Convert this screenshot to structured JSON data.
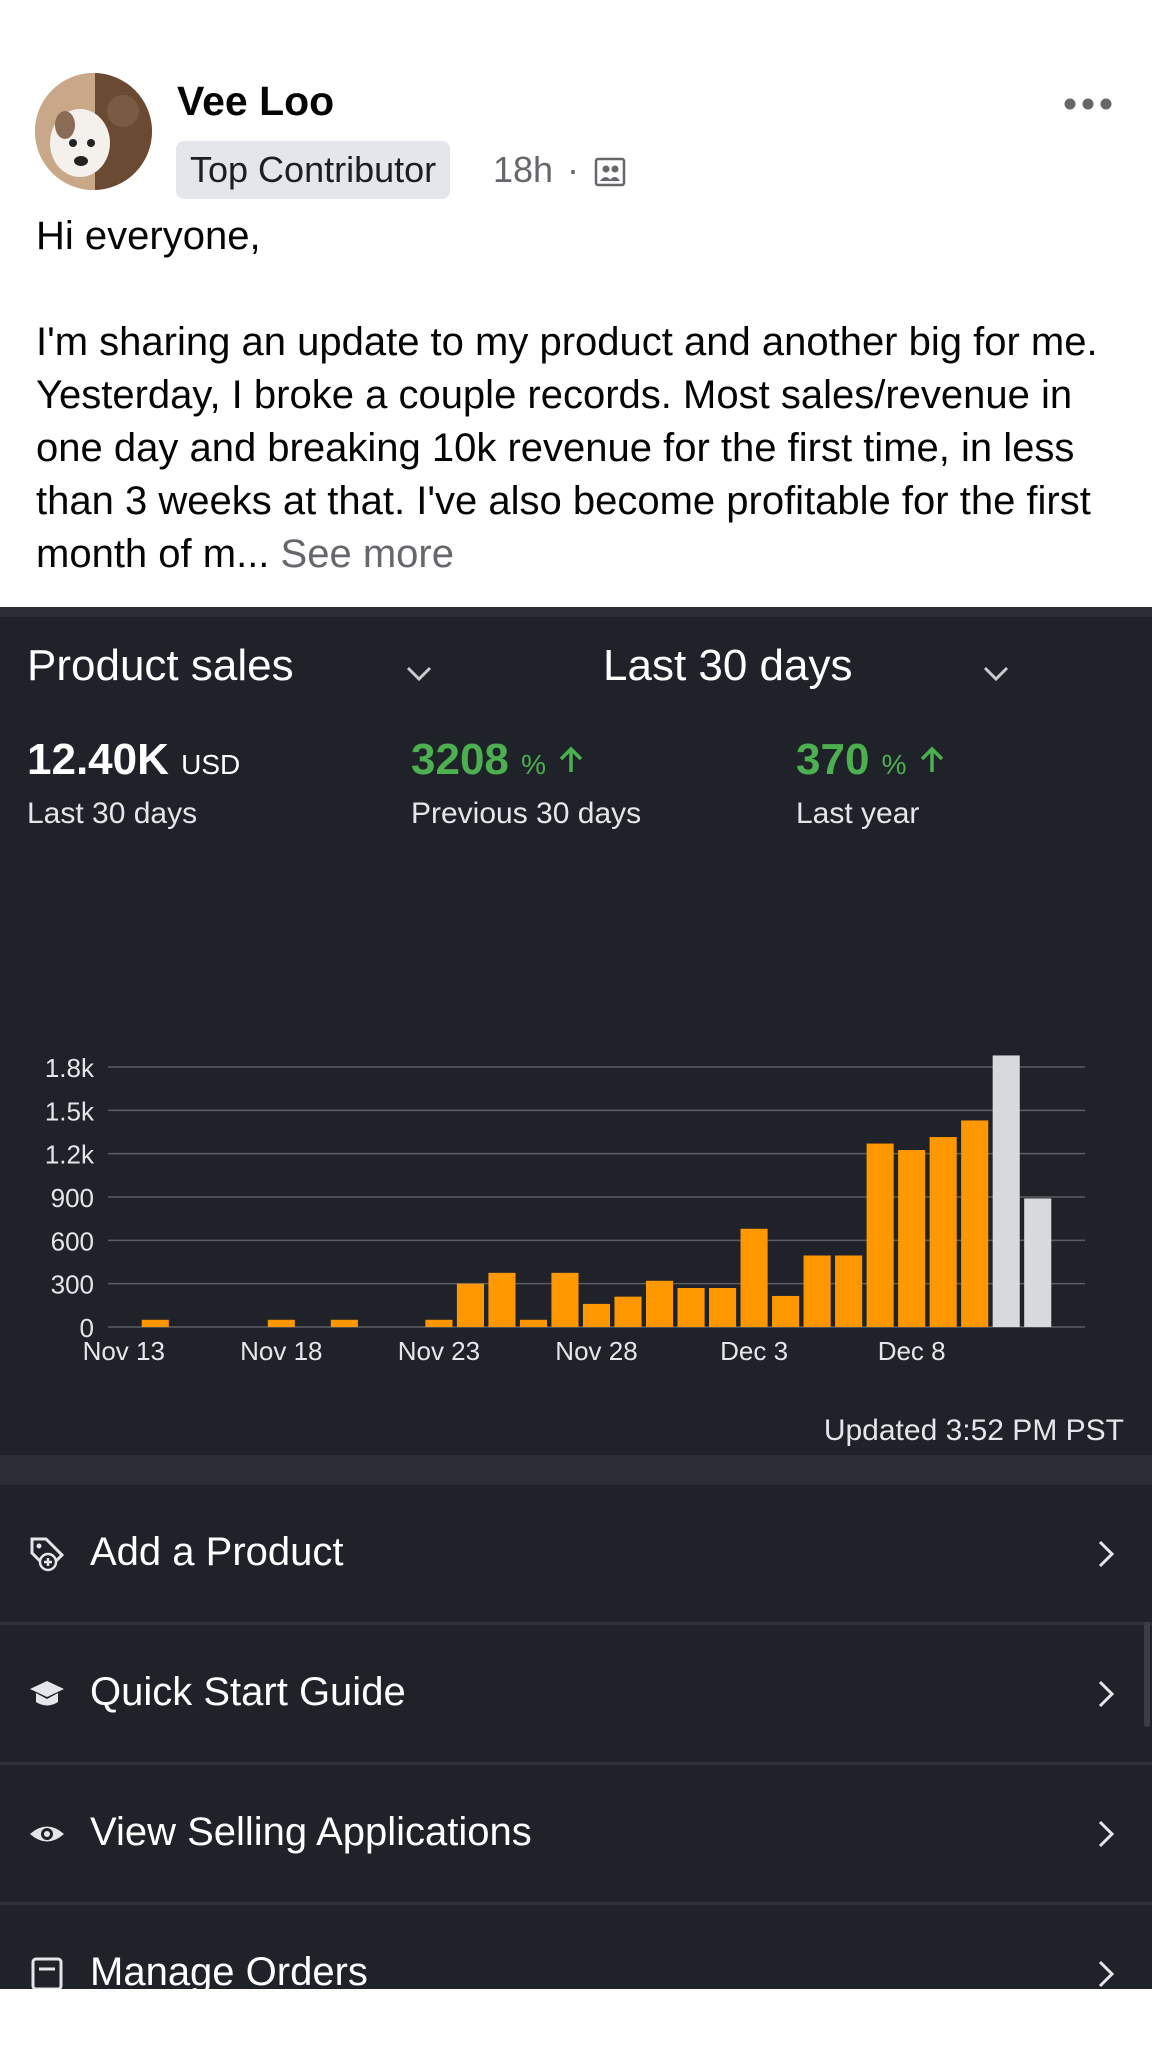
{
  "post": {
    "author": "Vee Loo",
    "badge": "Top Contributor",
    "time": "18h",
    "dot": "·",
    "greeting": "Hi everyone,",
    "body": "I'm sharing an update to my product and another big for me. Yesterday, I broke a couple records. Most sales/revenue in one day and breaking 10k revenue for the first time, in less than 3 weeks at that. I've also become profitable for the first month of m...",
    "see_more": "See more"
  },
  "dashboard": {
    "metric_dropdown": "Product sales",
    "range_dropdown": "Last 30 days",
    "metrics": [
      {
        "value": "12.40K",
        "unit": "USD",
        "label": "Last 30 days"
      },
      {
        "value": "3208",
        "unit": "%",
        "label": "Previous 30 days"
      },
      {
        "value": "370",
        "unit": "%",
        "label": "Last year"
      }
    ],
    "updated": "Updated 3:52 PM PST",
    "colors": {
      "bar": "#ff9800",
      "bar_projected": "#d8d9dc",
      "up": "#4caf50"
    }
  },
  "chart_data": {
    "type": "bar",
    "title": "",
    "xlabel": "",
    "ylabel": "",
    "ylim": [
      0,
      1800
    ],
    "yticks": [
      "0",
      "300",
      "600",
      "900",
      "1.2k",
      "1.5k",
      "1.8k"
    ],
    "xticks": [
      "Nov 13",
      "Nov 18",
      "Nov 23",
      "Nov 28",
      "Dec 3",
      "Dec 8"
    ],
    "categories": [
      "Nov 13",
      "Nov 14",
      "Nov 15",
      "Nov 16",
      "Nov 17",
      "Nov 18",
      "Nov 19",
      "Nov 20",
      "Nov 21",
      "Nov 22",
      "Nov 23",
      "Nov 24",
      "Nov 25",
      "Nov 26",
      "Nov 27",
      "Nov 28",
      "Nov 29",
      "Nov 30",
      "Dec 1",
      "Dec 2",
      "Dec 3",
      "Dec 4",
      "Dec 5",
      "Dec 6",
      "Dec 7",
      "Dec 8",
      "Dec 9",
      "Dec 10",
      "Dec 11",
      "Dec 12",
      "Dec 13"
    ],
    "values": [
      0,
      50,
      0,
      0,
      0,
      50,
      0,
      50,
      0,
      0,
      50,
      300,
      375,
      50,
      375,
      160,
      210,
      320,
      270,
      270,
      680,
      215,
      495,
      495,
      1270,
      1225,
      1315,
      1430,
      1880,
      890,
      0
    ],
    "projected": [
      false,
      false,
      false,
      false,
      false,
      false,
      false,
      false,
      false,
      false,
      false,
      false,
      false,
      false,
      false,
      false,
      false,
      false,
      false,
      false,
      false,
      false,
      false,
      false,
      false,
      false,
      false,
      false,
      true,
      true,
      false
    ],
    "grid": true
  },
  "menu": [
    {
      "label": "Add a Product",
      "icon": "tag-plus-icon"
    },
    {
      "label": "Quick Start Guide",
      "icon": "graduation-cap-icon"
    },
    {
      "label": "View Selling Applications",
      "icon": "eye-icon"
    },
    {
      "label": "Manage Orders",
      "icon": "receipt-icon"
    }
  ]
}
